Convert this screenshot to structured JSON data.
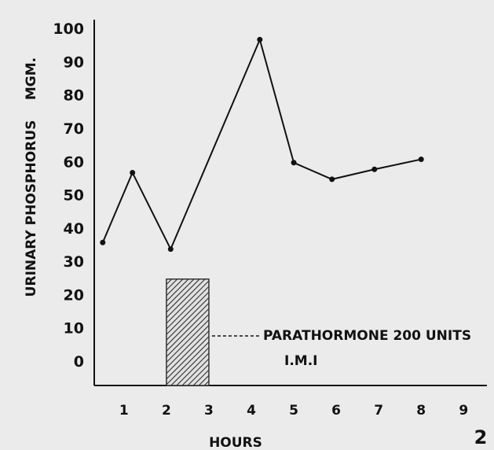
{
  "chart_data": {
    "type": "line",
    "y_label": "URINARY PHOSPHORUS",
    "y_unit": "MGM.",
    "x_label": "HOURS",
    "figure_number": "2",
    "x": [
      0.5,
      1.2,
      2.1,
      4.2,
      5,
      5.9,
      6.9,
      8
    ],
    "series": [
      {
        "color": "#111111",
        "values": [
          36,
          57,
          34,
          97,
          60,
          55,
          58,
          61
        ]
      }
    ],
    "shaded_bar": {
      "x": [
        2,
        3
      ],
      "value": 25,
      "color": "#333333"
    },
    "annotation": {
      "text": "PARATHORMONE 200 UNITS",
      "subtext": "I.M.I"
    },
    "xlim": [
      0.3,
      9.55
    ],
    "ylim": [
      -7,
      103
    ],
    "xticks": [
      1,
      2,
      3,
      4,
      5,
      6,
      7,
      8,
      9
    ],
    "yticks": [
      0,
      10,
      20,
      30,
      40,
      50,
      60,
      70,
      80,
      90,
      100
    ],
    "grid": false
  }
}
